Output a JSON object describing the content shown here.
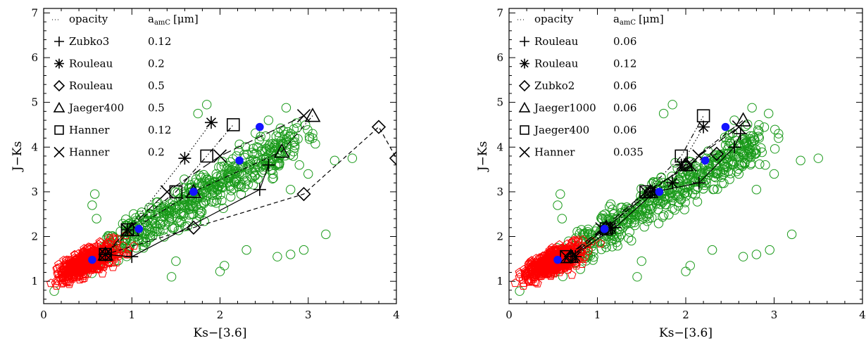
{
  "chart_data": [
    {
      "type": "scatter",
      "xlabel": "Ks−[3.6]",
      "ylabel": "J−Ks",
      "xlim": [
        0,
        4
      ],
      "ylim": [
        0.5,
        7.1
      ],
      "xticks": [
        "0",
        "1",
        "2",
        "3",
        "4"
      ],
      "yticks": [
        "1",
        "2",
        "3",
        "4",
        "5",
        "6",
        "7"
      ],
      "legend": {
        "placement": "top-left",
        "header_opacity": "opacity",
        "header_size": "a",
        "header_size_sub": "amC",
        "header_unit": "[μm]",
        "entries": [
          {
            "symbol": "plus",
            "opacity": "Zubko3",
            "size": "0.12",
            "linestyle": "solid"
          },
          {
            "symbol": "asterisk",
            "opacity": "Rouleau",
            "size": "0.2",
            "linestyle": "dotted"
          },
          {
            "symbol": "diamond",
            "opacity": "Rouleau",
            "size": "0.5",
            "linestyle": "dashed"
          },
          {
            "symbol": "triangle",
            "opacity": "Jaeger400",
            "size": "0.5",
            "linestyle": "dashdot"
          },
          {
            "symbol": "square",
            "opacity": "Hanner",
            "size": "0.12",
            "linestyle": "dashdotdot"
          },
          {
            "symbol": "cross",
            "opacity": "Hanner",
            "size": "0.2",
            "linestyle": "longdash"
          }
        ]
      },
      "tracks": [
        {
          "symbol": "plus",
          "linestyle": "solid",
          "points": [
            [
              0.7,
              1.6
            ],
            [
              1.0,
              1.55
            ],
            [
              2.45,
              3.05
            ],
            [
              2.55,
              3.6
            ]
          ]
        },
        {
          "symbol": "asterisk",
          "linestyle": "dotted",
          "points": [
            [
              0.7,
              1.6
            ],
            [
              0.95,
              2.15
            ],
            [
              1.6,
              3.75
            ],
            [
              1.9,
              4.55
            ]
          ]
        },
        {
          "symbol": "diamond",
          "linestyle": "dashed",
          "points": [
            [
              0.7,
              1.6
            ],
            [
              1.7,
              2.2
            ],
            [
              2.95,
              2.95
            ],
            [
              3.8,
              4.45
            ],
            [
              4.0,
              3.75
            ]
          ]
        },
        {
          "symbol": "triangle",
          "linestyle": "dashdot",
          "points": [
            [
              0.7,
              1.6
            ],
            [
              1.0,
              2.15
            ],
            [
              1.7,
              3.0
            ],
            [
              2.7,
              3.9
            ],
            [
              3.05,
              4.7
            ]
          ]
        },
        {
          "symbol": "square",
          "linestyle": "dashdotdot",
          "points": [
            [
              0.7,
              1.6
            ],
            [
              0.95,
              2.15
            ],
            [
              1.5,
              3.0
            ],
            [
              1.85,
              3.8
            ],
            [
              2.15,
              4.5
            ]
          ]
        },
        {
          "symbol": "cross",
          "linestyle": "longdash",
          "points": [
            [
              0.7,
              1.6
            ],
            [
              0.95,
              2.15
            ],
            [
              1.4,
              3.0
            ],
            [
              2.0,
              3.8
            ],
            [
              2.95,
              4.7
            ]
          ]
        }
      ],
      "blue_points": [
        [
          0.55,
          1.48
        ],
        [
          1.08,
          2.17
        ],
        [
          1.7,
          3.0
        ],
        [
          2.22,
          3.7
        ],
        [
          2.45,
          4.45
        ]
      ]
    },
    {
      "type": "scatter",
      "xlabel": "Ks−[3.6]",
      "ylabel": "J−Ks",
      "xlim": [
        0,
        4
      ],
      "ylim": [
        0.5,
        7.1
      ],
      "xticks": [
        "0",
        "1",
        "2",
        "3",
        "4"
      ],
      "yticks": [
        "1",
        "2",
        "3",
        "4",
        "5",
        "6",
        "7"
      ],
      "legend": {
        "placement": "top-left",
        "header_opacity": "opacity",
        "header_size": "a",
        "header_size_sub": "amC",
        "header_unit": "[μm]",
        "entries": [
          {
            "symbol": "plus",
            "opacity": "Rouleau",
            "size": "0.06",
            "linestyle": "solid"
          },
          {
            "symbol": "asterisk",
            "opacity": "Rouleau",
            "size": "0.12",
            "linestyle": "dotted"
          },
          {
            "symbol": "diamond",
            "opacity": "Zubko2",
            "size": "0.06",
            "linestyle": "dashed"
          },
          {
            "symbol": "triangle",
            "opacity": "Jaeger1000",
            "size": "0.06",
            "linestyle": "dashdot"
          },
          {
            "symbol": "square",
            "opacity": "Jaeger400",
            "size": "0.06",
            "linestyle": "dashdotdot"
          },
          {
            "symbol": "cross",
            "opacity": "Hanner",
            "size": "0.035",
            "linestyle": "longdash"
          }
        ]
      },
      "tracks": [
        {
          "symbol": "plus",
          "linestyle": "solid",
          "points": [
            [
              0.7,
              1.55
            ],
            [
              1.2,
              2.2
            ],
            [
              1.65,
              3.0
            ],
            [
              2.15,
              3.2
            ],
            [
              2.55,
              4.0
            ],
            [
              2.62,
              4.3
            ]
          ]
        },
        {
          "symbol": "asterisk",
          "linestyle": "dotted",
          "points": [
            [
              0.75,
              1.55
            ],
            [
              1.15,
              2.2
            ],
            [
              1.6,
              3.0
            ],
            [
              1.85,
              3.2
            ],
            [
              1.95,
              3.6
            ],
            [
              2.2,
              4.45
            ]
          ]
        },
        {
          "symbol": "diamond",
          "linestyle": "dashed",
          "points": [
            [
              0.7,
              1.55
            ],
            [
              1.1,
              2.2
            ],
            [
              1.6,
              3.0
            ],
            [
              2.0,
              3.6
            ],
            [
              2.35,
              3.85
            ]
          ]
        },
        {
          "symbol": "triangle",
          "linestyle": "dashdot",
          "points": [
            [
              0.7,
              1.55
            ],
            [
              1.1,
              2.2
            ],
            [
              1.6,
              3.0
            ],
            [
              2.0,
              3.6
            ],
            [
              2.65,
              4.6
            ]
          ]
        },
        {
          "symbol": "square",
          "linestyle": "dashdotdot",
          "points": [
            [
              0.65,
              1.55
            ],
            [
              1.1,
              2.17
            ],
            [
              1.55,
              3.0
            ],
            [
              1.95,
              3.8
            ],
            [
              2.2,
              4.7
            ]
          ]
        },
        {
          "symbol": "cross",
          "linestyle": "longdash",
          "points": [
            [
              0.65,
              1.55
            ],
            [
              1.05,
              2.17
            ],
            [
              1.55,
              3.0
            ],
            [
              2.05,
              3.6
            ],
            [
              2.15,
              3.8
            ],
            [
              2.6,
              4.45
            ]
          ]
        }
      ],
      "blue_points": [
        [
          0.55,
          1.48
        ],
        [
          1.08,
          2.17
        ],
        [
          1.7,
          3.0
        ],
        [
          2.22,
          3.7
        ],
        [
          2.45,
          4.45
        ]
      ]
    }
  ],
  "clouds": {
    "red_color": "#ff0000",
    "green_color": "#1a9a1a",
    "blue_color": "#1414ff",
    "green_outliers": [
      [
        0.12,
        0.78
      ],
      [
        0.55,
        2.7
      ],
      [
        0.6,
        2.4
      ],
      [
        0.58,
        2.95
      ],
      [
        1.85,
        4.95
      ],
      [
        2.75,
        4.88
      ],
      [
        3.05,
        4.3
      ],
      [
        3.05,
        4.2
      ],
      [
        3.5,
        3.75
      ],
      [
        3.3,
        3.7
      ],
      [
        3.2,
        2.05
      ],
      [
        2.95,
        1.7
      ],
      [
        2.8,
        1.6
      ],
      [
        2.65,
        1.55
      ],
      [
        2.3,
        1.7
      ],
      [
        2.0,
        1.22
      ],
      [
        2.05,
        1.35
      ],
      [
        1.45,
        1.1
      ],
      [
        1.5,
        1.45
      ],
      [
        2.8,
        3.05
      ],
      [
        2.6,
        3.4
      ],
      [
        1.75,
        4.75
      ],
      [
        2.55,
        4.6
      ],
      [
        3.0,
        3.4
      ],
      [
        2.9,
        3.6
      ]
    ]
  }
}
